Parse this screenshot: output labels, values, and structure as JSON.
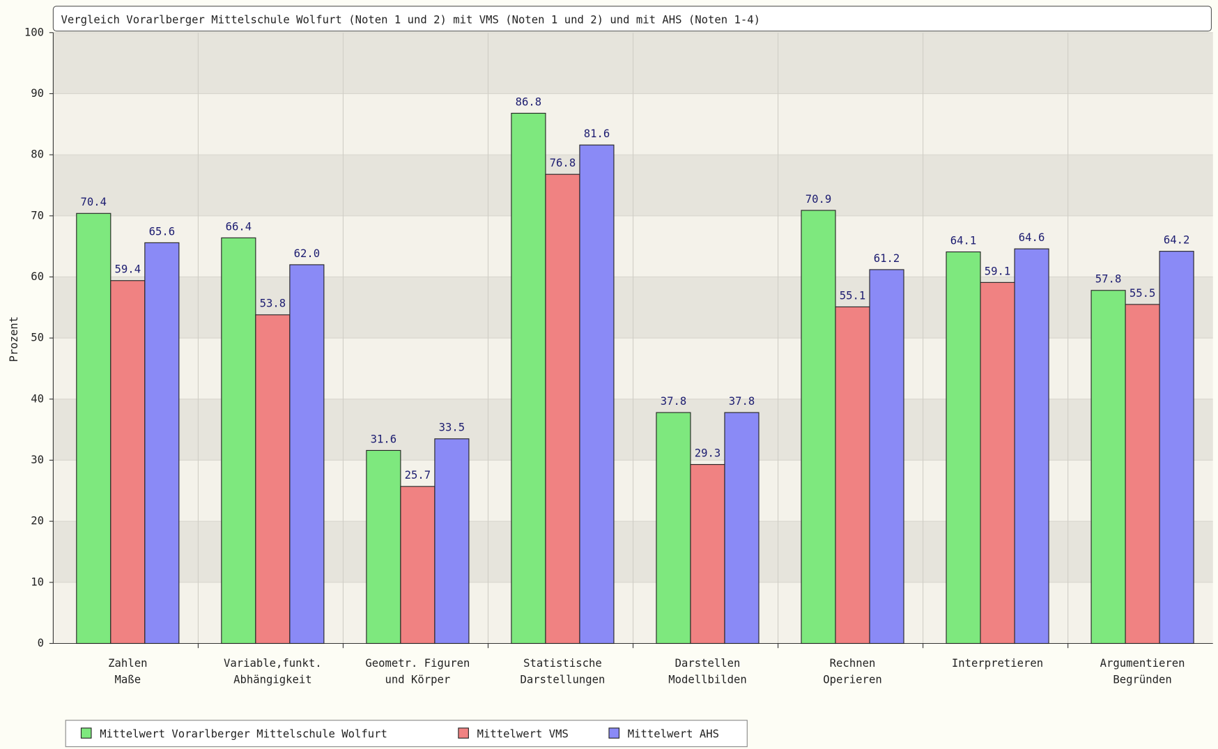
{
  "chart_data": {
    "type": "bar",
    "title": "Vergleich Vorarlberger Mittelschule Wolfurt (Noten 1 und 2) mit VMS (Noten 1 und 2) und mit AHS (Noten 1-4)",
    "y_label": "Prozent",
    "categories": [
      [
        "Zahlen",
        "Maße"
      ],
      [
        "Variable,funkt.",
        "Abhängigkeit"
      ],
      [
        "Geometr. Figuren",
        "und Körper"
      ],
      [
        "Statistische",
        "Darstellungen"
      ],
      [
        "Darstellen",
        "Modellbilden"
      ],
      [
        "Rechnen",
        "Operieren"
      ],
      [
        "Interpretieren"
      ],
      [
        "Argumentieren",
        "Begründen"
      ]
    ],
    "series": [
      {
        "name": "Mittelwert Vorarlberger Mittelschule Wolfurt",
        "color": "#7ee87e",
        "values": [
          70.4,
          66.4,
          31.6,
          86.8,
          37.8,
          70.9,
          64.1,
          57.8
        ],
        "value_labels": [
          "70.4",
          "66.4",
          "31.6",
          "86.8",
          "37.8",
          "70.9",
          "64.1",
          "57.8"
        ]
      },
      {
        "name": "Mittelwert VMS",
        "color": "#f08282",
        "values": [
          59.4,
          53.8,
          25.7,
          76.8,
          29.3,
          55.1,
          59.1,
          55.5
        ],
        "value_labels": [
          "59.4",
          "53.8",
          "25.7",
          "76.8",
          "29.3",
          "55.1",
          "59.1",
          "55.5"
        ]
      },
      {
        "name": "Mittelwert AHS",
        "color": "#8a8af6",
        "values": [
          65.6,
          62.0,
          33.5,
          81.6,
          37.8,
          61.2,
          64.6,
          64.2
        ],
        "value_labels": [
          "65.6",
          "62.0",
          "33.5",
          "81.6",
          "37.8",
          "61.2",
          "64.6",
          "64.2"
        ]
      }
    ],
    "ylim": [
      0,
      100
    ],
    "yticks": [
      0,
      10,
      20,
      30,
      40,
      50,
      60,
      70,
      80,
      90,
      100
    ],
    "grid": true,
    "legend": "bottom"
  }
}
